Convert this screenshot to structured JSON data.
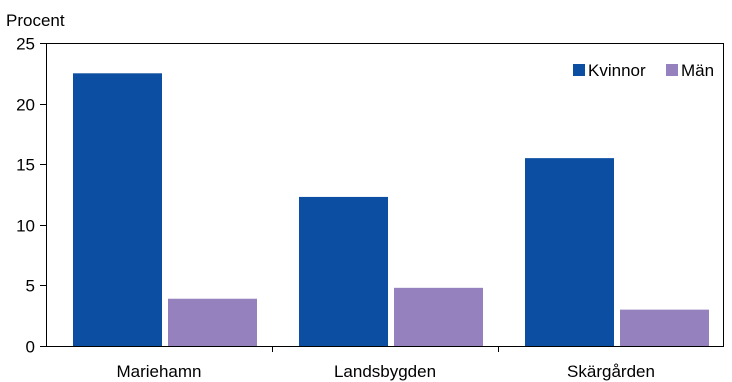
{
  "chart_data": {
    "type": "bar",
    "ylabel": "Procent",
    "categories": [
      "Mariehamn",
      "Landsbygden",
      "Skärgården"
    ],
    "series": [
      {
        "name": "Kvinnor",
        "color": "#0b4ea2",
        "values": [
          22.5,
          12.3,
          15.5
        ]
      },
      {
        "name": "Män",
        "color": "#9481bd",
        "values": [
          3.9,
          4.8,
          3.0
        ]
      }
    ],
    "ylim": [
      0,
      25
    ],
    "yticks": [
      0,
      5,
      10,
      15,
      20,
      25
    ],
    "grid": false,
    "legend": "top-right"
  }
}
